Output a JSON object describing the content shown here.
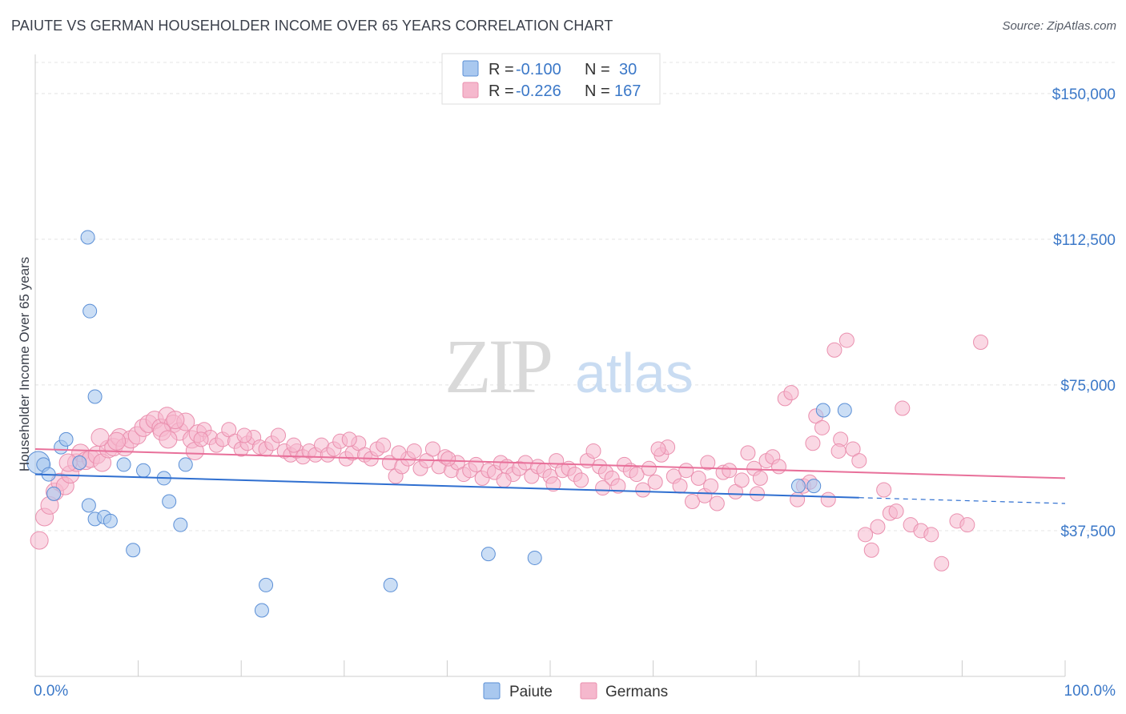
{
  "title": "PAIUTE VS GERMAN HOUSEHOLDER INCOME OVER 65 YEARS CORRELATION CHART",
  "source": "Source: ZipAtlas.com",
  "watermark": {
    "zip": "ZIP",
    "atlas": "atlas"
  },
  "colors": {
    "paiute_fill": "#a9c8ef",
    "paiute_stroke": "#5b8fd6",
    "paiute_line": "#2f6fd0",
    "german_fill": "#f5b8cd",
    "german_stroke": "#ea8fae",
    "german_line": "#e8709a"
  },
  "legend": {
    "r_label": "R =",
    "n_label": "N =",
    "paiute": {
      "r": "-0.100",
      "n": "30"
    },
    "germans": {
      "r": "-0.226",
      "n": "167"
    }
  },
  "bottom_legend": [
    "Paiute",
    "Germans"
  ],
  "chart_data": {
    "type": "scatter",
    "title": "PAIUTE VS GERMAN HOUSEHOLDER INCOME OVER 65 YEARS CORRELATION CHART",
    "xlabel": "",
    "ylabel": "Householder Income Over 65 years",
    "xlim": [
      0,
      100
    ],
    "ylim": [
      0,
      158000
    ],
    "x_tick_labels": [
      "0.0%",
      "100.0%"
    ],
    "y_ticks": [
      37500,
      75000,
      112500,
      150000
    ],
    "y_tick_labels": [
      "$37,500",
      "$75,000",
      "$112,500",
      "$150,000"
    ],
    "grid": "horizontal dashed",
    "legend_position": "top-center",
    "series": [
      {
        "name": "Paiute",
        "points": [
          [
            0.3,
            55000
          ],
          [
            0.8,
            54500
          ],
          [
            1.3,
            52000
          ],
          [
            1.8,
            47000
          ],
          [
            2.5,
            59000
          ],
          [
            3.0,
            61000
          ],
          [
            4.3,
            55000
          ],
          [
            5.2,
            44000
          ],
          [
            5.8,
            40500
          ],
          [
            6.7,
            41000
          ],
          [
            7.3,
            40000
          ],
          [
            5.3,
            94000
          ],
          [
            5.1,
            113000
          ],
          [
            5.8,
            72000
          ],
          [
            8.6,
            54500
          ],
          [
            9.5,
            32500
          ],
          [
            10.5,
            53000
          ],
          [
            12.5,
            51000
          ],
          [
            13.0,
            45000
          ],
          [
            14.1,
            39000
          ],
          [
            14.6,
            54500
          ],
          [
            22.4,
            23500
          ],
          [
            22.0,
            17000
          ],
          [
            34.5,
            23500
          ],
          [
            44.0,
            31500
          ],
          [
            48.5,
            30500
          ],
          [
            76.5,
            68500
          ],
          [
            78.6,
            68500
          ],
          [
            74.1,
            49000
          ],
          [
            75.6,
            49000
          ]
        ]
      },
      {
        "name": "Germans",
        "points": [
          [
            0.4,
            35000
          ],
          [
            0.9,
            41000
          ],
          [
            1.4,
            44000
          ],
          [
            1.9,
            47500
          ],
          [
            2.4,
            50000
          ],
          [
            2.9,
            49000
          ],
          [
            3.4,
            52000
          ],
          [
            4.0,
            55000
          ],
          [
            4.4,
            57500
          ],
          [
            4.9,
            55500
          ],
          [
            5.4,
            56000
          ],
          [
            6.0,
            57000
          ],
          [
            6.5,
            55000
          ],
          [
            7.1,
            58500
          ],
          [
            7.6,
            59000
          ],
          [
            8.2,
            61500
          ],
          [
            8.7,
            59000
          ],
          [
            9.3,
            61000
          ],
          [
            9.9,
            62000
          ],
          [
            10.5,
            64000
          ],
          [
            11.0,
            65000
          ],
          [
            11.6,
            66000
          ],
          [
            12.2,
            64000
          ],
          [
            12.8,
            67000
          ],
          [
            13.4,
            65000
          ],
          [
            14.0,
            63000
          ],
          [
            14.6,
            65500
          ],
          [
            15.2,
            61000
          ],
          [
            15.8,
            62500
          ],
          [
            16.4,
            63500
          ],
          [
            17.0,
            61500
          ],
          [
            17.6,
            59500
          ],
          [
            18.2,
            61000
          ],
          [
            18.8,
            63500
          ],
          [
            19.4,
            60500
          ],
          [
            20.0,
            58500
          ],
          [
            20.6,
            60000
          ],
          [
            21.2,
            61500
          ],
          [
            21.8,
            59000
          ],
          [
            22.4,
            58500
          ],
          [
            23.0,
            60000
          ],
          [
            23.6,
            62000
          ],
          [
            24.2,
            58000
          ],
          [
            24.8,
            57000
          ],
          [
            25.4,
            58000
          ],
          [
            26.0,
            56500
          ],
          [
            26.6,
            58000
          ],
          [
            27.2,
            57000
          ],
          [
            27.8,
            59500
          ],
          [
            28.4,
            57000
          ],
          [
            29.0,
            58500
          ],
          [
            29.6,
            60500
          ],
          [
            30.2,
            56000
          ],
          [
            30.8,
            57500
          ],
          [
            31.4,
            60000
          ],
          [
            32.0,
            57000
          ],
          [
            32.6,
            56000
          ],
          [
            33.2,
            58500
          ],
          [
            33.8,
            59500
          ],
          [
            34.4,
            55000
          ],
          [
            35.0,
            51500
          ],
          [
            35.6,
            54000
          ],
          [
            36.2,
            56000
          ],
          [
            36.8,
            58000
          ],
          [
            37.4,
            53500
          ],
          [
            38.0,
            55500
          ],
          [
            38.6,
            58500
          ],
          [
            39.2,
            54000
          ],
          [
            39.8,
            56500
          ],
          [
            40.4,
            53000
          ],
          [
            41.0,
            55000
          ],
          [
            41.6,
            52000
          ],
          [
            42.2,
            53000
          ],
          [
            42.8,
            54500
          ],
          [
            43.4,
            51000
          ],
          [
            44.0,
            53000
          ],
          [
            44.6,
            52500
          ],
          [
            45.2,
            55000
          ],
          [
            45.8,
            54000
          ],
          [
            46.4,
            52000
          ],
          [
            47.0,
            53500
          ],
          [
            47.6,
            55000
          ],
          [
            48.2,
            51500
          ],
          [
            48.8,
            54000
          ],
          [
            49.4,
            53000
          ],
          [
            50.0,
            51500
          ],
          [
            50.6,
            55500
          ],
          [
            51.2,
            53000
          ],
          [
            51.8,
            53500
          ],
          [
            52.4,
            52000
          ],
          [
            53.0,
            50500
          ],
          [
            53.6,
            55500
          ],
          [
            54.2,
            58000
          ],
          [
            54.8,
            54000
          ],
          [
            55.4,
            52500
          ],
          [
            56.0,
            51000
          ],
          [
            56.6,
            49000
          ],
          [
            57.2,
            54500
          ],
          [
            57.8,
            53000
          ],
          [
            58.4,
            52000
          ],
          [
            59.0,
            48000
          ],
          [
            59.6,
            53500
          ],
          [
            60.2,
            50000
          ],
          [
            60.8,
            57000
          ],
          [
            61.4,
            59000
          ],
          [
            62.0,
            51500
          ],
          [
            62.6,
            49000
          ],
          [
            63.2,
            53000
          ],
          [
            63.8,
            45000
          ],
          [
            64.4,
            51000
          ],
          [
            65.0,
            46500
          ],
          [
            65.6,
            49000
          ],
          [
            66.2,
            44500
          ],
          [
            66.8,
            52500
          ],
          [
            67.4,
            53000
          ],
          [
            68.0,
            47500
          ],
          [
            68.6,
            50500
          ],
          [
            69.2,
            57500
          ],
          [
            69.8,
            53500
          ],
          [
            70.4,
            51000
          ],
          [
            71.0,
            55500
          ],
          [
            71.6,
            56500
          ],
          [
            72.2,
            54000
          ],
          [
            72.8,
            71500
          ],
          [
            73.4,
            73000
          ],
          [
            74.0,
            45500
          ],
          [
            74.6,
            49000
          ],
          [
            75.2,
            50000
          ],
          [
            75.8,
            67000
          ],
          [
            76.4,
            64000
          ],
          [
            77.0,
            45500
          ],
          [
            77.6,
            84000
          ],
          [
            78.2,
            61000
          ],
          [
            78.8,
            86500
          ],
          [
            79.4,
            58500
          ],
          [
            80.0,
            55500
          ],
          [
            80.6,
            36500
          ],
          [
            81.2,
            32500
          ],
          [
            81.8,
            38500
          ],
          [
            82.4,
            48000
          ],
          [
            83.0,
            42000
          ],
          [
            83.6,
            42500
          ],
          [
            84.2,
            69000
          ],
          [
            85.0,
            39000
          ],
          [
            86.0,
            37500
          ],
          [
            87.0,
            36500
          ],
          [
            88.0,
            29000
          ],
          [
            89.5,
            40000
          ],
          [
            90.5,
            39000
          ],
          [
            91.8,
            86000
          ],
          [
            12.3,
            63000
          ],
          [
            12.9,
            61000
          ],
          [
            13.6,
            66000
          ],
          [
            7.9,
            60500
          ],
          [
            6.3,
            61500
          ],
          [
            3.2,
            55000
          ],
          [
            15.5,
            58000
          ],
          [
            16.1,
            61000
          ],
          [
            20.3,
            62000
          ],
          [
            25.1,
            59500
          ],
          [
            30.5,
            61000
          ],
          [
            35.3,
            57500
          ],
          [
            40.1,
            56000
          ],
          [
            45.5,
            50500
          ],
          [
            50.3,
            49500
          ],
          [
            55.1,
            48500
          ],
          [
            60.5,
            58500
          ],
          [
            65.3,
            55000
          ],
          [
            70.1,
            47000
          ],
          [
            75.5,
            60000
          ],
          [
            78.0,
            58000
          ]
        ]
      }
    ],
    "trend_lines": [
      {
        "name": "Paiute",
        "x": [
          0,
          80
        ],
        "y": [
          52000,
          46000
        ],
        "dashed_extension_x": [
          80,
          100
        ],
        "dashed_extension_y": [
          46000,
          44500
        ]
      },
      {
        "name": "Germans",
        "x": [
          0,
          100
        ],
        "y": [
          58500,
          51000
        ]
      }
    ]
  }
}
